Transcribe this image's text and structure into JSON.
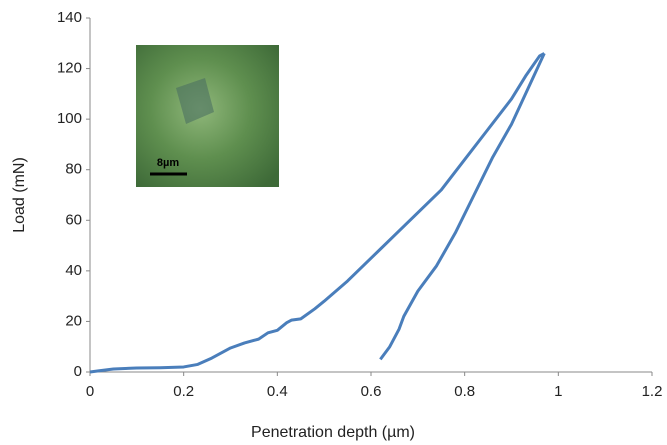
{
  "chart_data": {
    "type": "line",
    "x_label": "Penetration depth (µm)",
    "y_label": "Load (mN)",
    "inset_scale_label": "8µm",
    "xlim": [
      0,
      1.2
    ],
    "xticks": [
      0,
      0.2,
      0.4,
      0.6,
      0.8,
      1,
      1.2
    ],
    "ylim": [
      0,
      140
    ],
    "yticks": [
      0,
      20,
      40,
      60,
      80,
      100,
      120,
      140
    ],
    "grid": false,
    "series": [
      {
        "color": "#4a7ebb",
        "x": [
          0,
          0.02,
          0.05,
          0.1,
          0.15,
          0.2,
          0.23,
          0.26,
          0.3,
          0.33,
          0.36,
          0.38,
          0.4,
          0.42,
          0.43,
          0.45,
          0.48,
          0.5,
          0.55,
          0.6,
          0.65,
          0.7,
          0.75,
          0.8,
          0.85,
          0.9,
          0.93,
          0.96,
          0.97
        ],
        "values": [
          0,
          0.5,
          1.2,
          1.6,
          1.7,
          2,
          3,
          5.5,
          9.5,
          11.5,
          13,
          15.5,
          16.5,
          19.5,
          20.5,
          21,
          25,
          28,
          36,
          45,
          54,
          63,
          72,
          84,
          96,
          108,
          117,
          125,
          126
        ]
      },
      {
        "color": "#4a7ebb",
        "x": [
          0.97,
          0.96,
          0.93,
          0.9,
          0.86,
          0.82,
          0.78,
          0.74,
          0.7,
          0.67,
          0.66,
          0.64,
          0.62
        ],
        "values": [
          126,
          122,
          110,
          98,
          85,
          70,
          55,
          42,
          32,
          22,
          17,
          10,
          5
        ]
      }
    ]
  }
}
